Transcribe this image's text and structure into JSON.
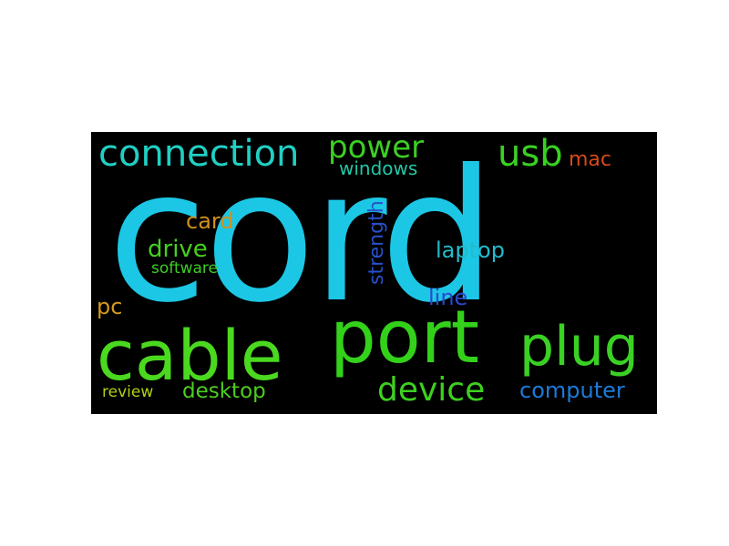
{
  "words": [
    {
      "key": "cord",
      "text": "cord",
      "color": "#1cc7e5"
    },
    {
      "key": "port",
      "text": "port",
      "color": "#33d11a"
    },
    {
      "key": "cable",
      "text": "cable",
      "color": "#4ad91f"
    },
    {
      "key": "plug",
      "text": "plug",
      "color": "#3ad124"
    },
    {
      "key": "connection",
      "text": "connection",
      "color": "#20d0c4"
    },
    {
      "key": "power",
      "text": "power",
      "color": "#3ccf24"
    },
    {
      "key": "usb",
      "text": "usb",
      "color": "#39d122"
    },
    {
      "key": "mac",
      "text": "mac",
      "color": "#d64a1a"
    },
    {
      "key": "windows",
      "text": "windows",
      "color": "#20c8a8"
    },
    {
      "key": "strength",
      "text": "strength",
      "color": "#2850c8"
    },
    {
      "key": "card",
      "text": "card",
      "color": "#d0901c"
    },
    {
      "key": "drive",
      "text": "drive",
      "color": "#44d01f"
    },
    {
      "key": "software",
      "text": "software",
      "color": "#3cce24"
    },
    {
      "key": "laptop",
      "text": "laptop",
      "color": "#22bccc"
    },
    {
      "key": "line",
      "text": "line",
      "color": "#2c48d0"
    },
    {
      "key": "pc",
      "text": "pc",
      "color": "#d19a1c"
    },
    {
      "key": "device",
      "text": "device",
      "color": "#3ed020"
    },
    {
      "key": "computer",
      "text": "computer",
      "color": "#1c7ad8"
    },
    {
      "key": "review",
      "text": "review",
      "color": "#b0d018"
    },
    {
      "key": "desktop",
      "text": "desktop",
      "color": "#4cce1e"
    }
  ]
}
